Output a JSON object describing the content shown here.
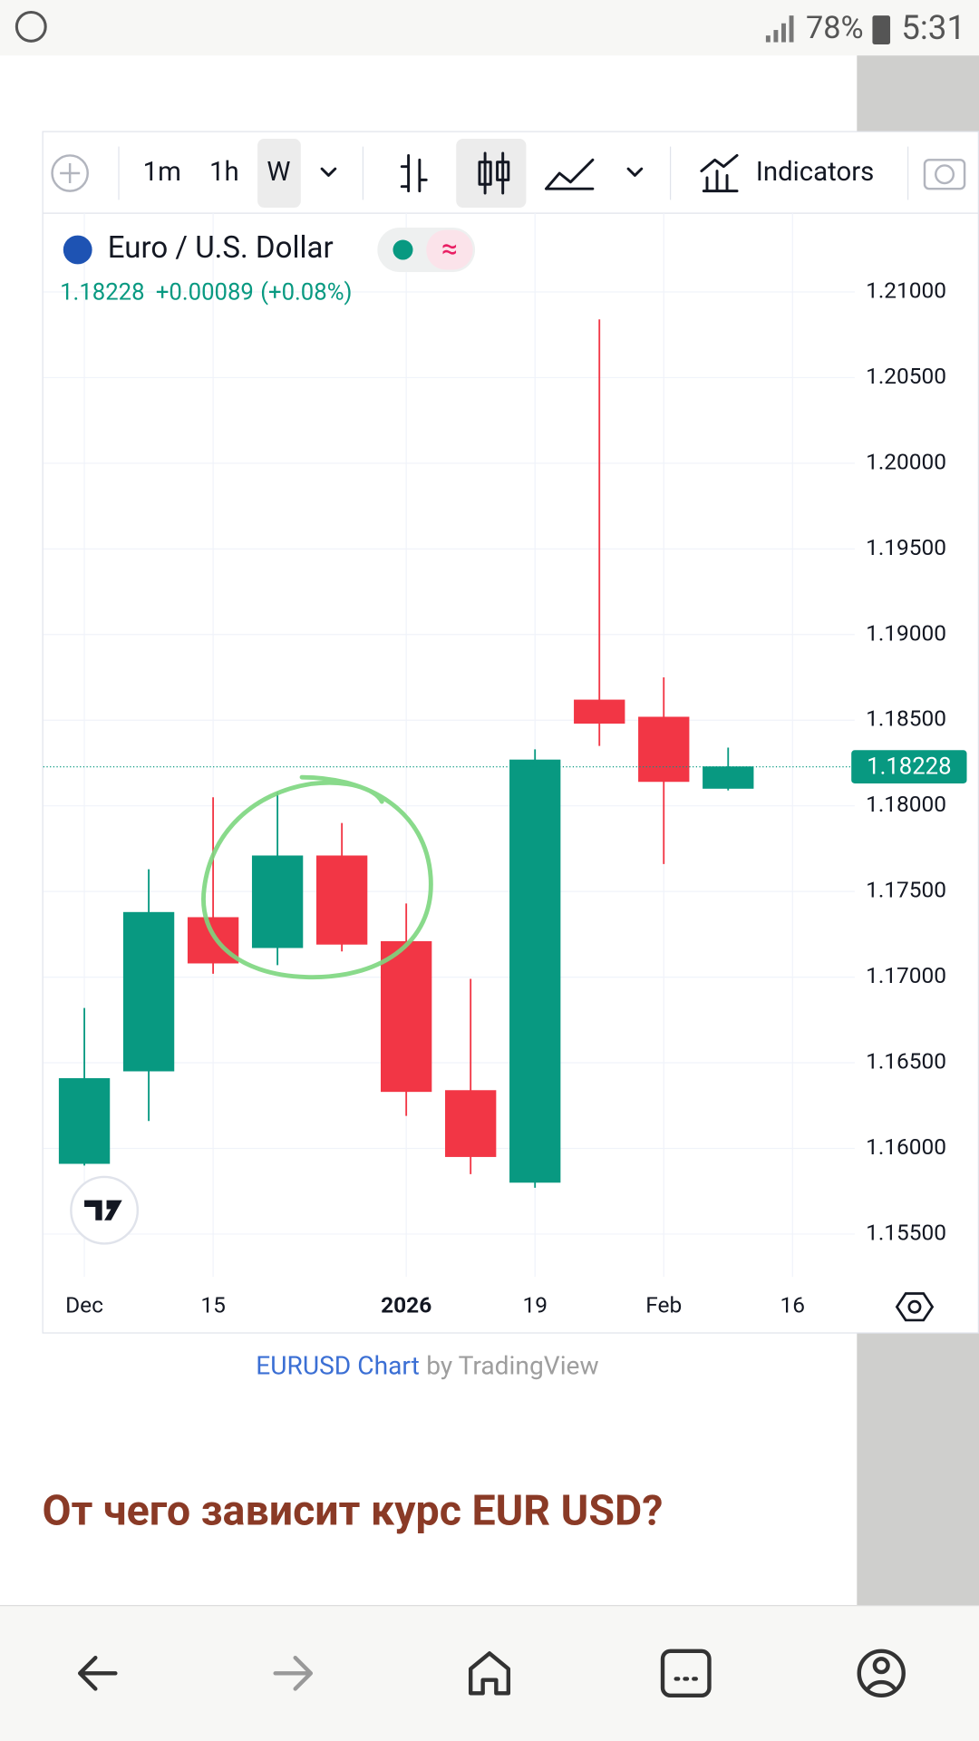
{
  "status_bar": {
    "battery": "78%",
    "time": "5:31"
  },
  "toolbar": {
    "intervals": [
      "1m",
      "1h",
      "W"
    ],
    "indicators": "Indicators"
  },
  "chart_data": {
    "type": "candlestick",
    "title": "Euro / U.S. Dollar",
    "change": "+0.00089",
    "change_percent": "(+0.08%)",
    "categories": [
      "Dec",
      null,
      "15",
      null,
      null,
      "2026",
      null,
      "19",
      null,
      "Feb",
      null,
      "16"
    ],
    "open": [
      1.1591,
      1.1645,
      1.1735,
      1.1717,
      1.1771,
      1.1721,
      1.1634,
      1.158,
      1.1862,
      1.1852,
      1.181,
      null
    ],
    "high": [
      1.1682,
      1.1763,
      1.1805,
      1.1808,
      1.179,
      1.1743,
      1.1699,
      1.1833,
      1.2084,
      1.1875,
      1.1834,
      null
    ],
    "low": [
      1.159,
      1.1616,
      1.1702,
      1.1707,
      1.1715,
      1.1619,
      1.1585,
      1.1577,
      1.1835,
      1.1766,
      1.1809,
      null
    ],
    "close": [
      1.1641,
      1.1738,
      1.1708,
      1.1771,
      1.1719,
      1.1633,
      1.1595,
      1.1827,
      1.1848,
      1.1814,
      1.1823,
      null
    ],
    "up_color": "#089981",
    "down_color": "#f23645",
    "ylim": [
      1.1525,
      1.2146
    ],
    "yticks": [
      {
        "value": 1.155,
        "label": "1.15500"
      },
      {
        "value": 1.16,
        "label": "1.16000"
      },
      {
        "value": 1.165,
        "label": "1.16500"
      },
      {
        "value": 1.17,
        "label": "1.17000"
      },
      {
        "value": 1.175,
        "label": "1.17500"
      },
      {
        "value": 1.18,
        "label": "1.18000"
      },
      {
        "value": 1.185,
        "label": "1.18500"
      },
      {
        "value": 1.19,
        "label": "1.19000"
      },
      {
        "value": 1.195,
        "label": "1.19500"
      },
      {
        "value": 1.2,
        "label": "1.20000"
      },
      {
        "value": 1.205,
        "label": "1.20500"
      },
      {
        "value": 1.21,
        "label": "1.21000"
      }
    ],
    "grid": true,
    "last_price": {
      "value": 1.18228,
      "label": "1.18228"
    }
  },
  "caption": {
    "link": "EURUSD Chart",
    "by": "by TradingView"
  },
  "heading": "От чего зависит курс EUR USD?"
}
